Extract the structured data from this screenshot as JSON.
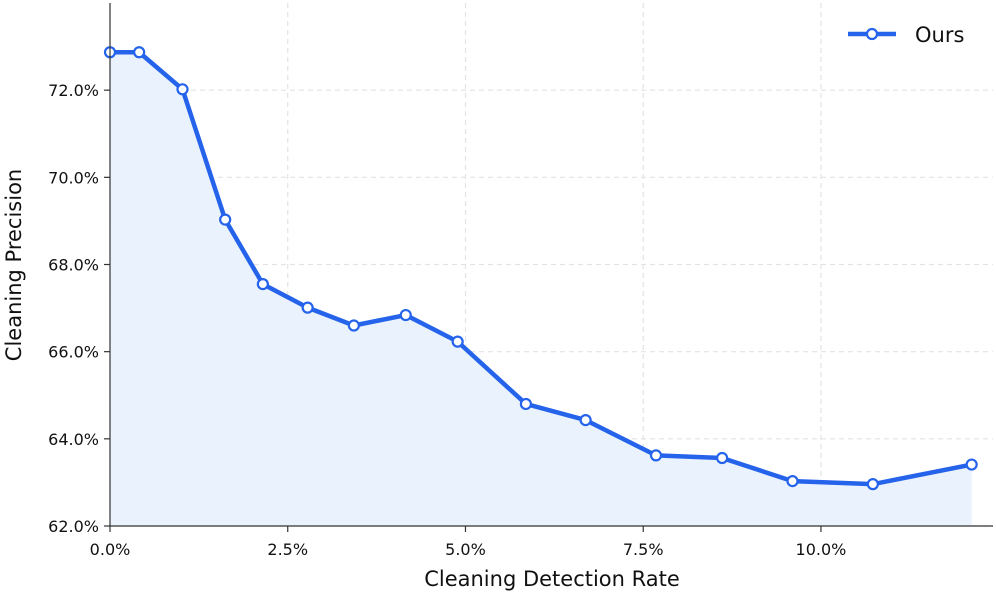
{
  "chart_data": {
    "type": "line",
    "xlabel": "Cleaning Detection Rate",
    "ylabel": "Cleaning Precision",
    "xlim": [
      0.0,
      0.1242
    ],
    "ylim": [
      62.0,
      74.0
    ],
    "x_ticks": [
      0.0,
      0.025,
      0.05,
      0.075,
      0.1
    ],
    "x_tick_labels": [
      "0.0%",
      "2.5%",
      "5.0%",
      "7.5%",
      "10.0%"
    ],
    "y_ticks": [
      62.0,
      64.0,
      66.0,
      68.0,
      70.0,
      72.0
    ],
    "y_tick_labels": [
      "62.0%",
      "64.0%",
      "66.0%",
      "68.0%",
      "70.0%",
      "72.0%"
    ],
    "grid": true,
    "legend_position": "top-right",
    "filled_area": true,
    "series": [
      {
        "name": "Ours",
        "color": "#2563eb",
        "fill_color": "#eaf2fd",
        "x": [
          0.0,
          0.0041,
          0.0102,
          0.0162,
          0.0215,
          0.0278,
          0.0343,
          0.0416,
          0.0489,
          0.0585,
          0.0669,
          0.0768,
          0.0861,
          0.096,
          0.1073,
          0.1212
        ],
        "y": [
          72.87,
          72.87,
          72.02,
          69.03,
          67.55,
          67.01,
          66.6,
          66.84,
          66.23,
          64.8,
          64.43,
          63.62,
          63.56,
          63.03,
          62.96,
          63.41
        ]
      }
    ]
  }
}
